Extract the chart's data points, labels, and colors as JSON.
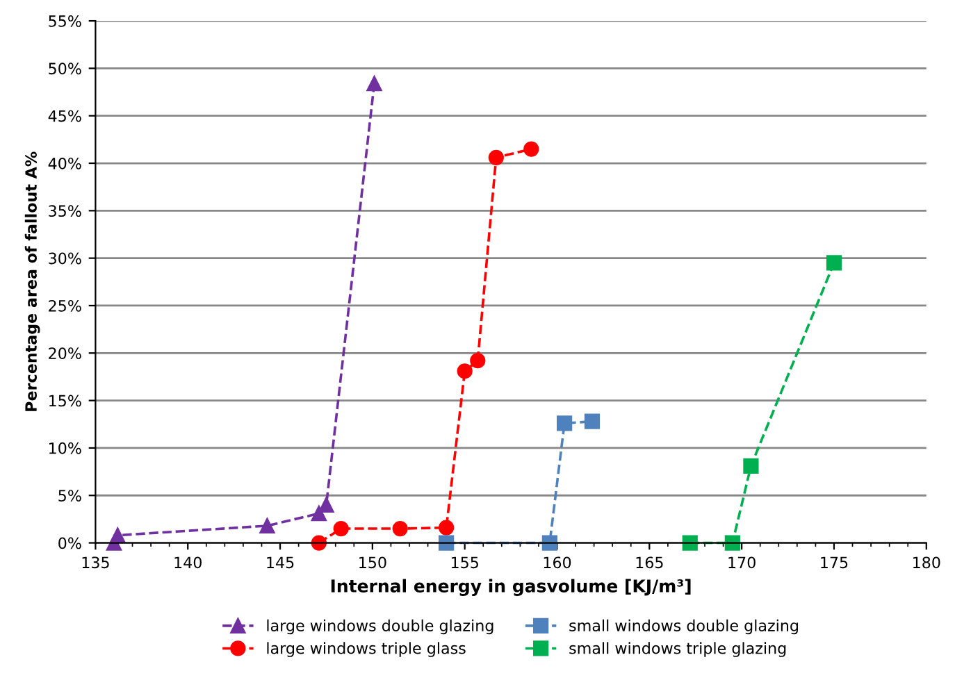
{
  "chart_data": {
    "type": "line",
    "xlabel": "Internal energy in gasvolume [KJ/m³]",
    "ylabel": "Percentage area of fallout A%",
    "xlim": [
      135,
      180
    ],
    "xticks": [
      135,
      140,
      145,
      150,
      155,
      160,
      165,
      170,
      175,
      180
    ],
    "ylim": [
      0,
      55
    ],
    "yticks": [
      {
        "value": 0,
        "label": "0%"
      },
      {
        "value": 5,
        "label": "5%"
      },
      {
        "value": 10,
        "label": "10%"
      },
      {
        "value": 15,
        "label": "15%"
      },
      {
        "value": 20,
        "label": "20%"
      },
      {
        "value": 25,
        "label": "25%"
      },
      {
        "value": 30,
        "label": "30%"
      },
      {
        "value": 35,
        "label": "35%"
      },
      {
        "value": 40,
        "label": "40%"
      },
      {
        "value": 45,
        "label": "45%"
      },
      {
        "value": 50,
        "label": "50%"
      },
      {
        "value": 55,
        "label": "55%"
      }
    ],
    "grid": "y",
    "legend": "bottom",
    "line_style": "dashed",
    "series": [
      {
        "name": "large windows double glazing",
        "color": "#7030a0",
        "marker": "triangle",
        "x": [
          136,
          136.2,
          144.3,
          147.1,
          147.5,
          150.1
        ],
        "values": [
          0,
          0.8,
          1.8,
          3.1,
          4.0,
          48.4
        ]
      },
      {
        "name": "large windows triple glass",
        "color": "#ff0000",
        "marker": "circle",
        "x": [
          147.1,
          148.3,
          151.5,
          154,
          155,
          155.7,
          156.7,
          158.6
        ],
        "values": [
          0,
          1.5,
          1.5,
          1.6,
          18.1,
          19.2,
          40.6,
          41.5
        ]
      },
      {
        "name": "small windows double glazing",
        "color": "#4f81bd",
        "marker": "square",
        "x": [
          154,
          159.6,
          160.4,
          161.9
        ],
        "values": [
          0,
          0,
          12.6,
          12.8
        ]
      },
      {
        "name": "small windows triple glazing",
        "color": "#00b050",
        "marker": "square",
        "x": [
          167.2,
          169.5,
          170.5,
          175
        ],
        "values": [
          0,
          0,
          8.1,
          29.5
        ]
      }
    ]
  }
}
